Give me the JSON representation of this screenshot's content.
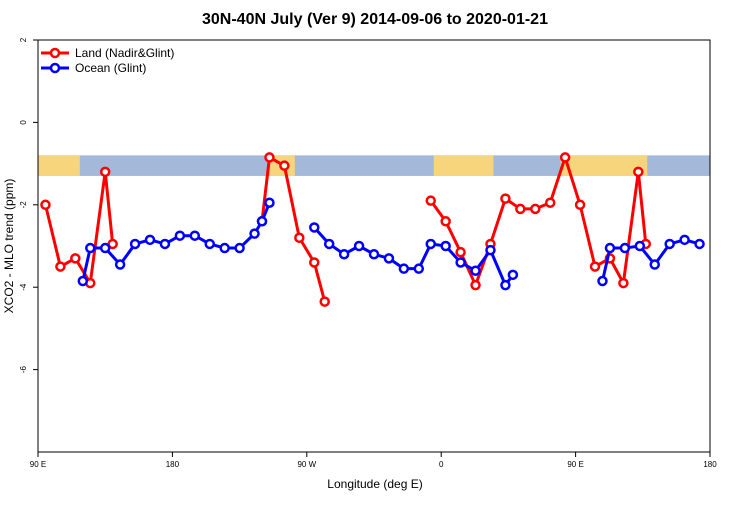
{
  "chart_data": {
    "type": "line",
    "title": "30N-40N July (Ver 9)   2014-09-06 to 2020-01-21",
    "xlabel": "Longitude (deg E)",
    "ylabel": "XCO2 - MLO trend (ppm)",
    "xlim": [
      90,
      540
    ],
    "ylim": [
      -8,
      2
    ],
    "x_ticks": [
      {
        "value": 90,
        "label": "90 E"
      },
      {
        "value": 180,
        "label": "180"
      },
      {
        "value": 270,
        "label": "90 W"
      },
      {
        "value": 360,
        "label": "0"
      },
      {
        "value": 450,
        "label": "90 E"
      },
      {
        "value": 540,
        "label": "180"
      }
    ],
    "y_ticks": [
      {
        "value": 2,
        "label": "2"
      },
      {
        "value": 0,
        "label": "0"
      },
      {
        "value": -2,
        "label": "-2"
      },
      {
        "value": -4,
        "label": "-4"
      },
      {
        "value": -6,
        "label": "-6"
      }
    ],
    "grid": false,
    "legend_position": "top-left",
    "land_ocean_band": {
      "y_top": -0.8,
      "y_bottom": -1.3
    },
    "series": [
      {
        "name": "Land (Nadir&Glint)",
        "color": "#ff0000",
        "segments": [
          [
            [
              95,
              -2.0
            ],
            [
              105,
              -3.5
            ],
            [
              115,
              -3.3
            ],
            [
              125,
              -3.9
            ],
            [
              135,
              -1.2
            ],
            [
              140,
              -2.95
            ]
          ],
          [
            [
              240,
              -2.4
            ],
            [
              245,
              -0.85
            ],
            [
              255,
              -1.05
            ],
            [
              265,
              -2.8
            ],
            [
              275,
              -3.4
            ],
            [
              282,
              -4.35
            ]
          ],
          [
            [
              353,
              -1.9
            ],
            [
              363,
              -2.4
            ],
            [
              373,
              -3.15
            ],
            [
              383,
              -3.95
            ],
            [
              393,
              -2.95
            ],
            [
              403,
              -1.85
            ],
            [
              413,
              -2.1
            ],
            [
              423,
              -2.1
            ],
            [
              433,
              -1.95
            ],
            [
              443,
              -0.85
            ],
            [
              453,
              -2.0
            ],
            [
              463,
              -3.5
            ],
            [
              473,
              -3.3
            ],
            [
              482,
              -3.9
            ],
            [
              492,
              -1.2
            ],
            [
              497,
              -2.95
            ]
          ]
        ]
      },
      {
        "name": "Ocean (Glint)",
        "color": "#0000ff",
        "segments": [
          [
            [
              120,
              -3.85
            ],
            [
              125,
              -3.05
            ],
            [
              135,
              -3.05
            ],
            [
              145,
              -3.45
            ],
            [
              155,
              -2.95
            ],
            [
              165,
              -2.85
            ],
            [
              175,
              -2.95
            ],
            [
              185,
              -2.75
            ],
            [
              195,
              -2.75
            ],
            [
              205,
              -2.95
            ],
            [
              215,
              -3.05
            ],
            [
              225,
              -3.05
            ],
            [
              235,
              -2.7
            ],
            [
              240,
              -2.4
            ],
            [
              245,
              -1.95
            ]
          ],
          [
            [
              275,
              -2.55
            ],
            [
              285,
              -2.95
            ],
            [
              295,
              -3.2
            ],
            [
              305,
              -3.0
            ],
            [
              315,
              -3.2
            ],
            [
              325,
              -3.3
            ],
            [
              335,
              -3.55
            ],
            [
              345,
              -3.55
            ],
            [
              353,
              -2.95
            ],
            [
              363,
              -3.0
            ],
            [
              373,
              -3.4
            ],
            [
              383,
              -3.6
            ],
            [
              393,
              -3.1
            ],
            [
              403,
              -3.95
            ],
            [
              408,
              -3.7
            ]
          ],
          [
            [
              468,
              -3.85
            ],
            [
              473,
              -3.05
            ],
            [
              483,
              -3.05
            ],
            [
              493,
              -3.0
            ],
            [
              503,
              -3.45
            ],
            [
              513,
              -2.95
            ],
            [
              523,
              -2.85
            ],
            [
              533,
              -2.95
            ]
          ]
        ]
      }
    ]
  }
}
